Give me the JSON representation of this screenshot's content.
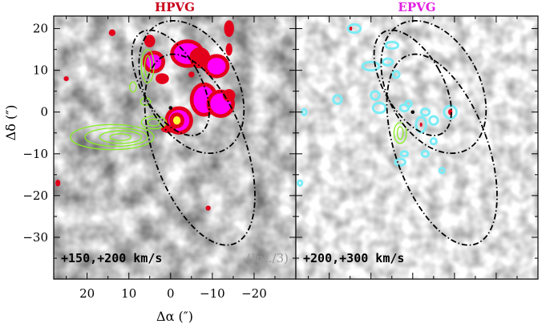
{
  "chart_data": [
    {
      "type": "heatmap",
      "title": "HPVG",
      "title_color": "#c8001a",
      "velocity_label": "+150,+200 km/s",
      "note": "(Int./3)",
      "xlabel": "Δα (″)",
      "ylabel": "Δδ (″)",
      "xlim": [
        28,
        -30
      ],
      "ylim": [
        -40,
        23
      ],
      "x_ticks": [
        20,
        10,
        0,
        -10,
        -20
      ],
      "x_tick_labels": [
        "20",
        "10",
        "0",
        "−10",
        "−20"
      ],
      "y_ticks": [
        20,
        10,
        0,
        -10,
        -20,
        -30
      ],
      "y_tick_labels": [
        "20",
        "10",
        "0",
        "−10",
        "−20",
        "−30"
      ],
      "emission_blobs": [
        {
          "x": 5,
          "y": 17,
          "rx": 1.3,
          "ry": 1.5,
          "level": "red"
        },
        {
          "x": 4,
          "y": 12,
          "rx": 1.8,
          "ry": 1.8,
          "level": "magenta"
        },
        {
          "x": 2,
          "y": 8,
          "rx": 1.6,
          "ry": 1.3,
          "level": "red"
        },
        {
          "x": -4,
          "y": 14,
          "rx": 3.2,
          "ry": 2.5,
          "level": "magenta"
        },
        {
          "x": -7,
          "y": 13,
          "rx": 2.5,
          "ry": 2.5,
          "level": "red"
        },
        {
          "x": -11,
          "y": 11,
          "rx": 2.2,
          "ry": 2.0,
          "level": "magenta"
        },
        {
          "x": -14,
          "y": 20,
          "rx": 1.2,
          "ry": 2.0,
          "level": "red"
        },
        {
          "x": -14,
          "y": 15,
          "rx": 0.8,
          "ry": 1.5,
          "level": "red"
        },
        {
          "x": -8,
          "y": 3,
          "rx": 2.5,
          "ry": 3.2,
          "level": "magenta"
        },
        {
          "x": -12,
          "y": 2,
          "rx": 2.5,
          "ry": 2.5,
          "level": "magenta"
        },
        {
          "x": -14,
          "y": 4,
          "rx": 1.5,
          "ry": 1.5,
          "level": "red"
        },
        {
          "x": -2,
          "y": -2,
          "rx": 2.5,
          "ry": 2.5,
          "level": "magenta"
        },
        {
          "x": -1.5,
          "y": -2,
          "rx": 0.9,
          "ry": 1.0,
          "level": "yellow"
        },
        {
          "x": 0.5,
          "y": -4,
          "rx": 1.8,
          "ry": 1.0,
          "level": "red"
        },
        {
          "x": 14,
          "y": 19,
          "rx": 0.8,
          "ry": 0.8,
          "level": "red"
        },
        {
          "x": 27,
          "y": -17,
          "rx": 0.6,
          "ry": 0.8,
          "level": "red"
        },
        {
          "x": -9,
          "y": -23,
          "rx": 0.6,
          "ry": 0.6,
          "level": "red"
        },
        {
          "x": -5,
          "y": 9,
          "rx": 0.7,
          "ry": 0.7,
          "level": "red"
        },
        {
          "x": 25,
          "y": 8,
          "rx": 0.6,
          "ry": 0.6,
          "level": "red"
        }
      ],
      "line_contours": [
        {
          "x": 5.5,
          "y": 11,
          "rx": 1.5,
          "ry": 4.0
        },
        {
          "x": 5.5,
          "y": 11,
          "rx": 0.7,
          "ry": 2.5
        },
        {
          "x": 9,
          "y": 6,
          "rx": 0.8,
          "ry": 1.2
        },
        {
          "x": 6,
          "y": 2.5,
          "rx": 1.2,
          "ry": 0.9
        },
        {
          "x": 14,
          "y": -6,
          "rx": 10.0,
          "ry": 3.0
        },
        {
          "x": 13,
          "y": -6,
          "rx": 7.5,
          "ry": 2.2
        },
        {
          "x": 12,
          "y": -6,
          "rx": 5.0,
          "ry": 1.5
        },
        {
          "x": 12,
          "y": -6,
          "rx": 2.5,
          "ry": 0.8
        },
        {
          "x": 4,
          "y": -2.5,
          "rx": 3.0,
          "ry": 1.5
        },
        {
          "x": 4,
          "y": -2.5,
          "rx": 1.5,
          "ry": 0.8
        }
      ],
      "marker": {
        "x": 0,
        "y": 1
      }
    },
    {
      "type": "heatmap",
      "title": "EPVG",
      "title_color": "#e020e0",
      "velocity_label": "+200,+300 km/s",
      "xlim": [
        28,
        -30
      ],
      "ylim": [
        -40,
        23
      ],
      "emission_blobs": [
        {
          "x": 15,
          "y": 20,
          "rx": 0.5,
          "ry": 0.6,
          "level": "red"
        },
        {
          "x": 14,
          "y": 20,
          "rx": 1.5,
          "ry": 1.0,
          "level": "cyan"
        },
        {
          "x": 5,
          "y": 16,
          "rx": 1.5,
          "ry": 0.8,
          "level": "cyan"
        },
        {
          "x": 10,
          "y": 11,
          "rx": 2.0,
          "ry": 1.0,
          "level": "cyan"
        },
        {
          "x": 6,
          "y": 12,
          "rx": 1.2,
          "ry": 0.8,
          "level": "cyan"
        },
        {
          "x": 4,
          "y": 9,
          "rx": 0.8,
          "ry": 0.8,
          "level": "cyan"
        },
        {
          "x": 9,
          "y": 4,
          "rx": 1.0,
          "ry": 1.0,
          "level": "cyan"
        },
        {
          "x": 8,
          "y": 1,
          "rx": 1.5,
          "ry": 1.2,
          "level": "cyan"
        },
        {
          "x": 2,
          "y": 1,
          "rx": 1.0,
          "ry": 0.8,
          "level": "cyan"
        },
        {
          "x": 1,
          "y": 2,
          "rx": 0.7,
          "ry": 0.7,
          "level": "cyan"
        },
        {
          "x": -2,
          "y": -3,
          "rx": 1.2,
          "ry": 1.8,
          "level": "cyan"
        },
        {
          "x": -2,
          "y": -3,
          "rx": 0.3,
          "ry": 0.5,
          "level": "red"
        },
        {
          "x": -3,
          "y": 0,
          "rx": 1.0,
          "ry": 0.8,
          "level": "cyan"
        },
        {
          "x": -5,
          "y": -2,
          "rx": 1.0,
          "ry": 1.0,
          "level": "cyan"
        },
        {
          "x": -9,
          "y": 0,
          "rx": 1.5,
          "ry": 1.5,
          "level": "cyan"
        },
        {
          "x": -9,
          "y": 0,
          "rx": 0.5,
          "ry": 0.7,
          "level": "red"
        },
        {
          "x": 18,
          "y": 3,
          "rx": 1.0,
          "ry": 1.0,
          "level": "cyan"
        },
        {
          "x": 26,
          "y": 0,
          "rx": 0.5,
          "ry": 0.7,
          "level": "cyan"
        },
        {
          "x": -5,
          "y": -7,
          "rx": 0.7,
          "ry": 0.7,
          "level": "cyan"
        },
        {
          "x": 2,
          "y": -10,
          "rx": 0.8,
          "ry": 0.6,
          "level": "cyan"
        },
        {
          "x": -3,
          "y": -10,
          "rx": 0.8,
          "ry": 0.7,
          "level": "cyan"
        },
        {
          "x": 3,
          "y": -12,
          "rx": 1.2,
          "ry": 0.8,
          "level": "cyan"
        },
        {
          "x": 27,
          "y": -17,
          "rx": 0.5,
          "ry": 0.6,
          "level": "cyan"
        },
        {
          "x": -7,
          "y": -14,
          "rx": 0.6,
          "ry": 0.6,
          "level": "cyan"
        }
      ],
      "line_contours": [
        {
          "x": 3,
          "y": -5,
          "rx": 1.5,
          "ry": 2.5
        },
        {
          "x": 3,
          "y": -5,
          "rx": 0.7,
          "ry": 1.5
        }
      ],
      "marker": {
        "x": 0,
        "y": 0
      }
    }
  ],
  "ellipses": [
    {
      "cx": -7,
      "cy": -9,
      "semi_major": 24,
      "semi_minor": 11,
      "pa": -20
    },
    {
      "cx": 0,
      "cy": 7,
      "semi_major": 14,
      "semi_minor": 7,
      "pa": -30
    },
    {
      "cx": -5,
      "cy": 6,
      "semi_major": 17,
      "semi_minor": 11,
      "pa": -28
    }
  ],
  "colors": {
    "red": "#e3001b",
    "magenta": "#ff00ff",
    "yellow": "#ffff33",
    "cyan": "#7cecf6",
    "green": "#88ee22",
    "ellipse": "#000000",
    "frame": "#000000"
  }
}
